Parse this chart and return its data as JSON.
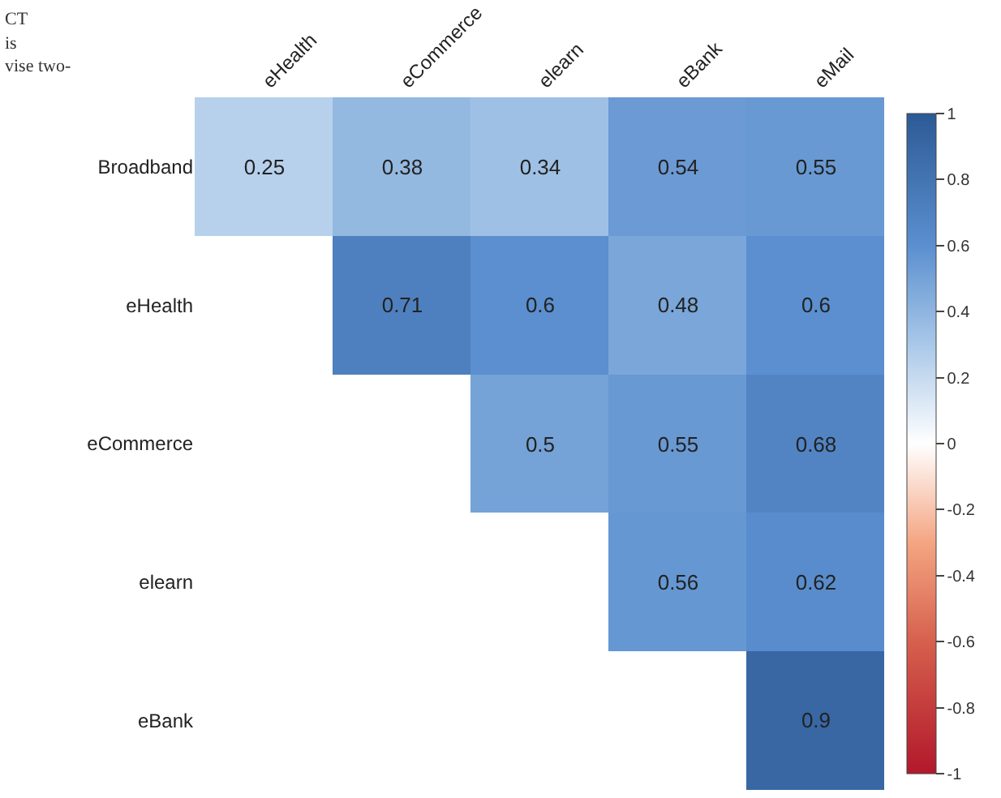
{
  "chart_data": {
    "type": "heatmap",
    "categories": [
      "eHealth",
      "eCommerce",
      "elearn",
      "eBank",
      "eMail"
    ],
    "y_categories": [
      "Broadband",
      "eHealth",
      "eCommerce",
      "elearn",
      "eBank"
    ],
    "cells": [
      [
        0.25,
        0.38,
        0.34,
        0.54,
        0.55
      ],
      [
        null,
        0.71,
        0.6,
        0.48,
        0.6
      ],
      [
        null,
        null,
        0.5,
        0.55,
        0.68
      ],
      [
        null,
        null,
        null,
        0.56,
        0.62
      ],
      [
        null,
        null,
        null,
        null,
        0.9
      ]
    ],
    "data_labels": true,
    "clim": [
      -1,
      1
    ],
    "cticks": [
      -1,
      -0.8,
      -0.6,
      -0.4,
      -0.2,
      0,
      0.2,
      0.4,
      0.6,
      0.8,
      1
    ],
    "annotations": [
      "CT",
      "is",
      "vise two-"
    ]
  }
}
